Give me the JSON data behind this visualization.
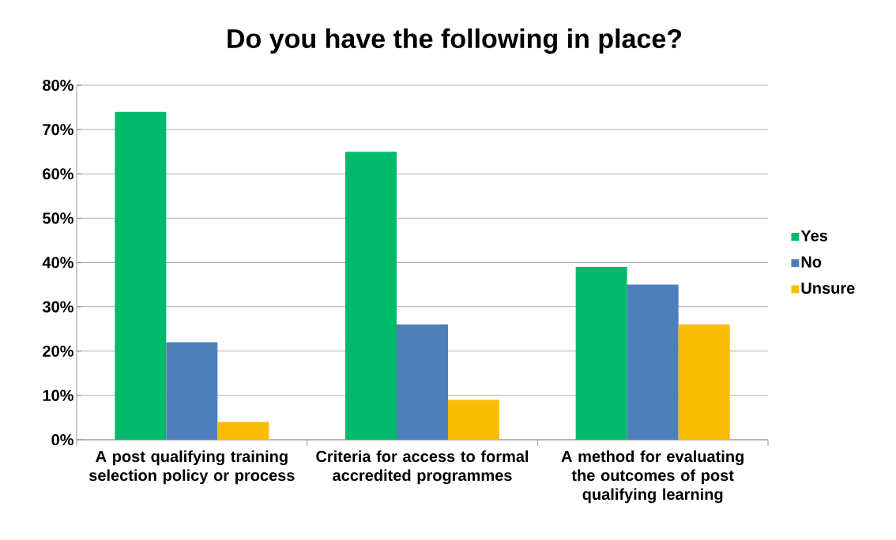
{
  "chart_data": {
    "type": "bar",
    "title": "Do you have the following in place?",
    "categories": [
      "A post qualifying training selection policy or process",
      "Criteria for access to formal accredited programmes",
      "A method for evaluating the outcomes of post qualifying learning"
    ],
    "series": [
      {
        "name": "Yes",
        "color": "#00b96b",
        "values": [
          74,
          65,
          39
        ]
      },
      {
        "name": "No",
        "color": "#4f7fba",
        "values": [
          22,
          26,
          35
        ]
      },
      {
        "name": "Unsure",
        "color": "#f9bd04",
        "values": [
          4,
          9,
          26
        ]
      }
    ],
    "ylim": [
      0,
      80
    ],
    "yticks": [
      {
        "value": 0,
        "label": "0%"
      },
      {
        "value": 10,
        "label": "10%"
      },
      {
        "value": 20,
        "label": "20%"
      },
      {
        "value": 30,
        "label": "30%"
      },
      {
        "value": 40,
        "label": "40%"
      },
      {
        "value": 50,
        "label": "50%"
      },
      {
        "value": 60,
        "label": "60%"
      },
      {
        "value": 70,
        "label": "70%"
      },
      {
        "value": 80,
        "label": "80%"
      }
    ],
    "grid": "y",
    "legend": "right"
  }
}
